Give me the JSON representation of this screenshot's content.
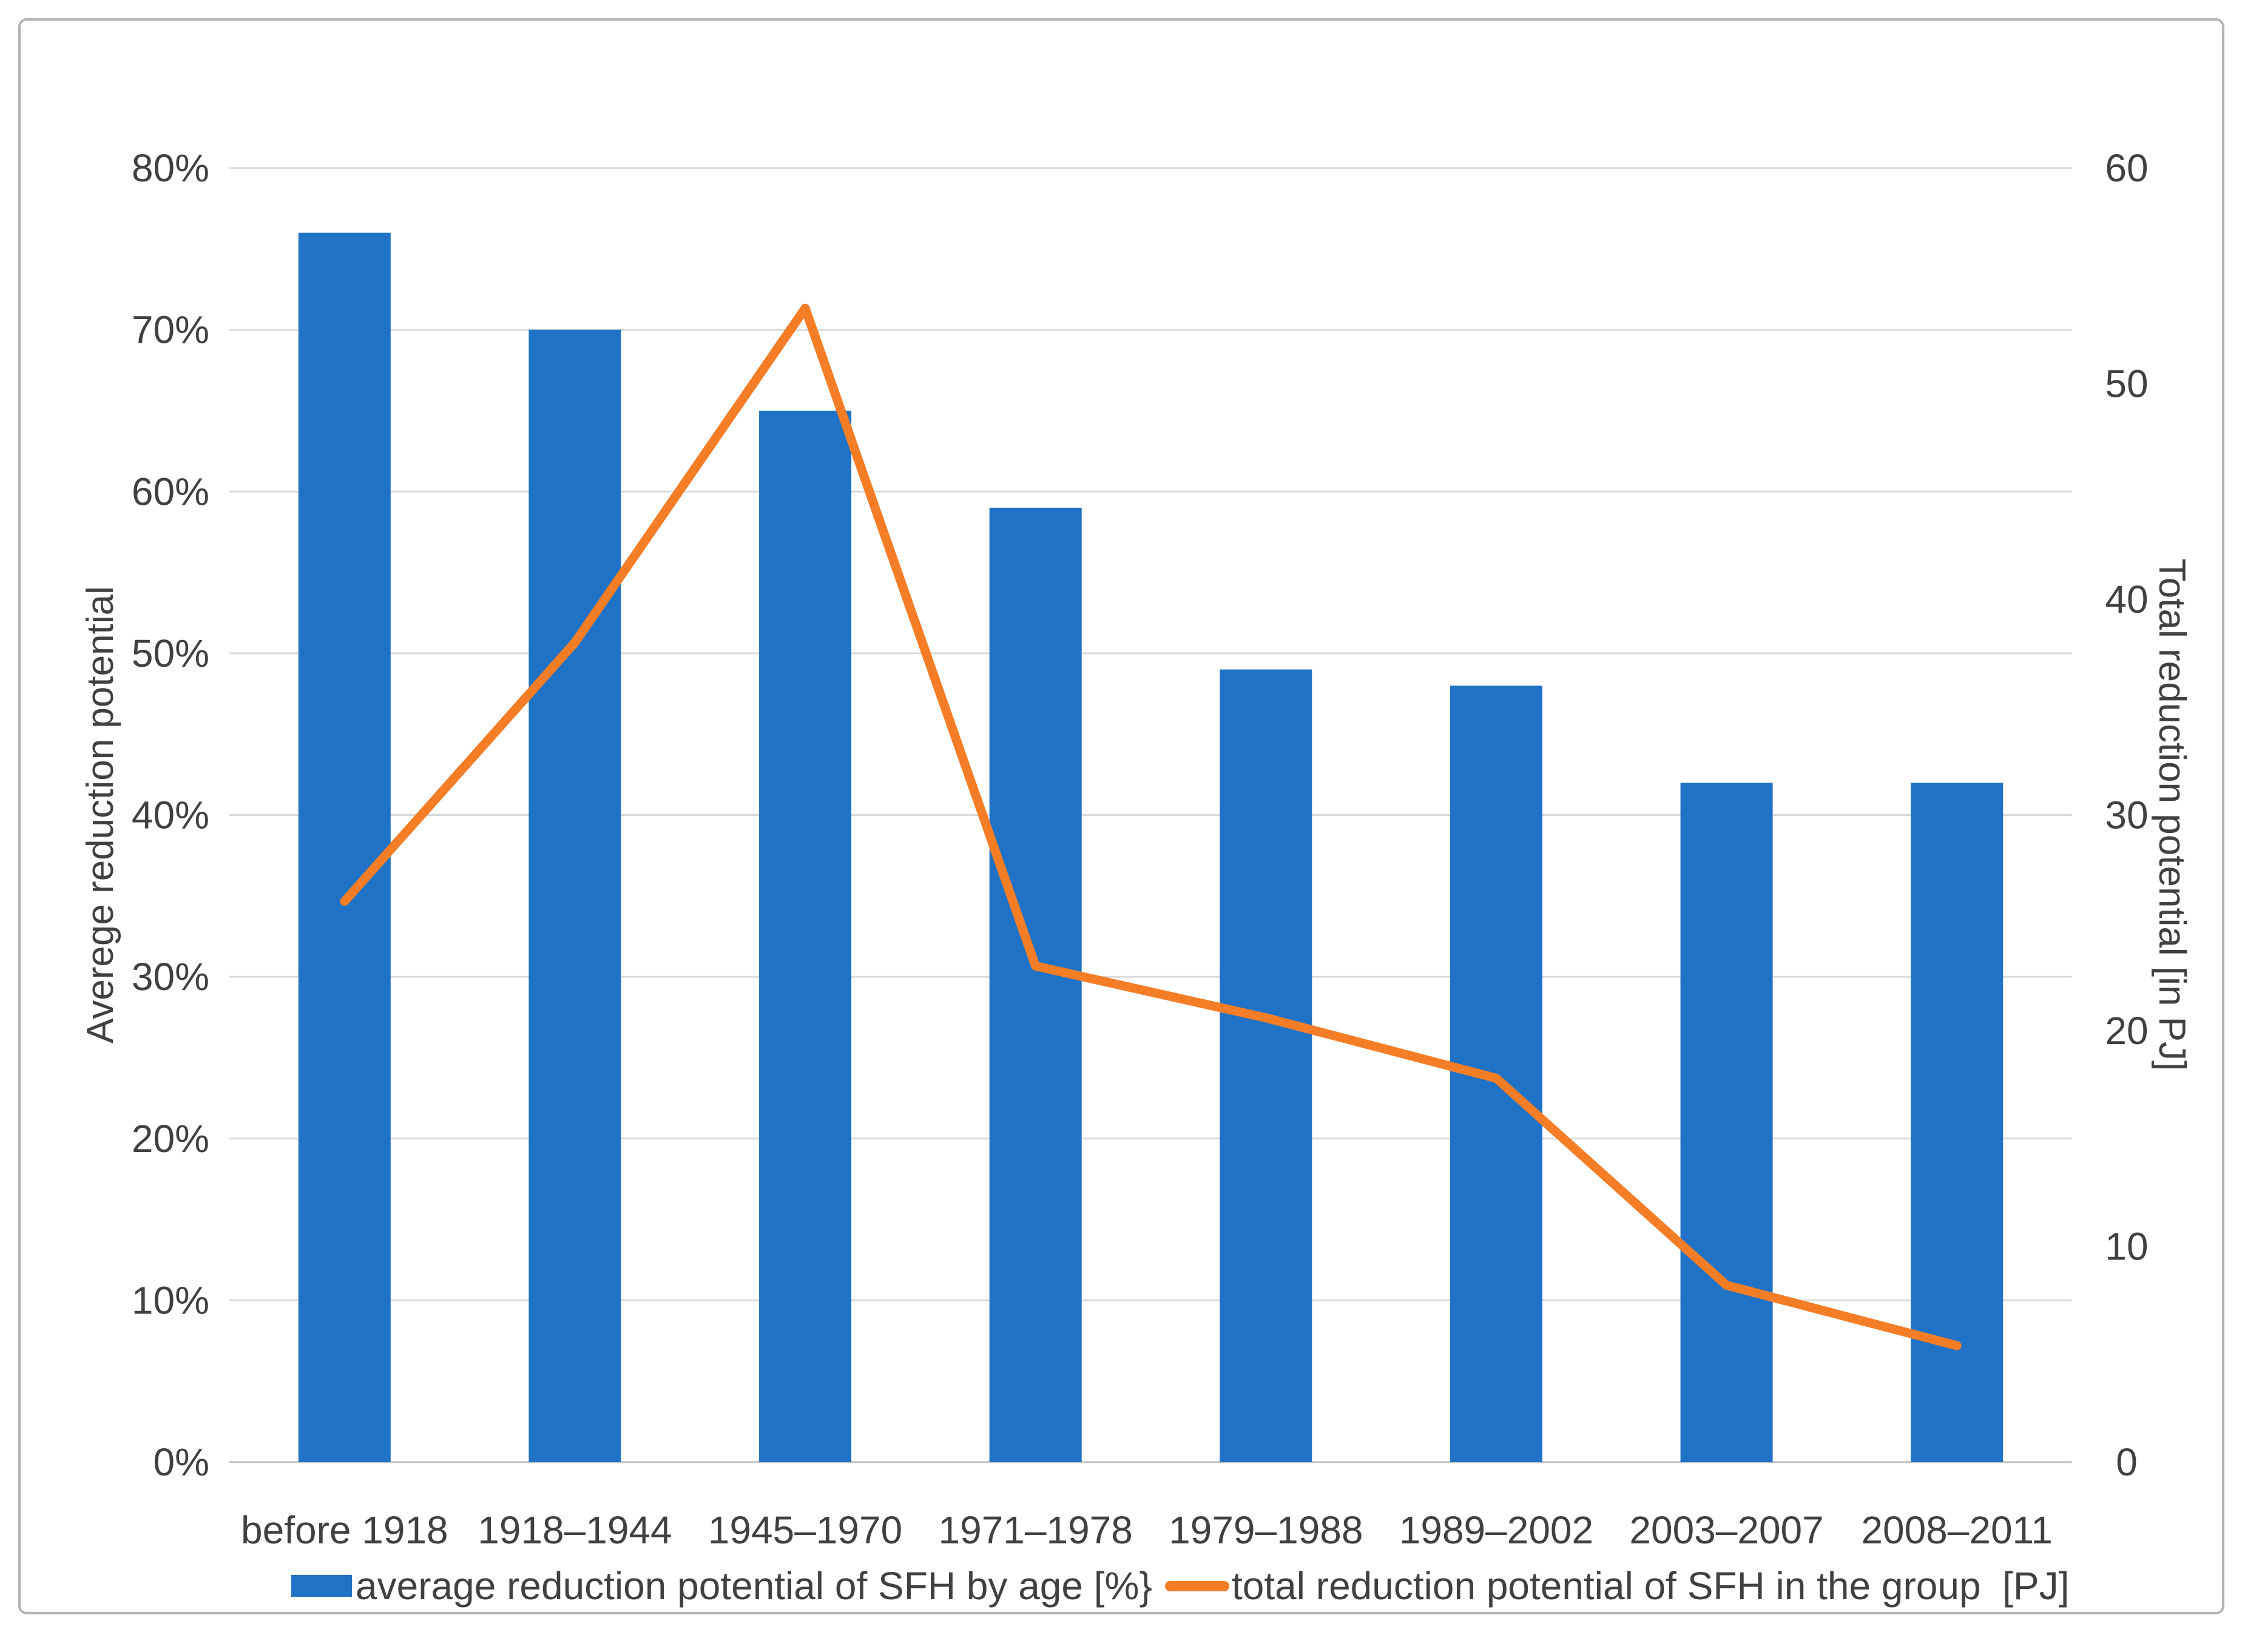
{
  "chart_data": {
    "type": "combo",
    "categories": [
      "before 1918",
      "1918–1944",
      "1945–1970",
      "1971–1978",
      "1979–1988",
      "1989–2002",
      "2003–2007",
      "2008–2011"
    ],
    "series": [
      {
        "name": "average reduction potential of SFH by age [%}",
        "type": "bar",
        "axis": "left",
        "unit": "%",
        "values": [
          76,
          70,
          65,
          59,
          49,
          48,
          42,
          42
        ]
      },
      {
        "name": "total reduction potential of SFH in the group  [PJ]",
        "type": "line",
        "axis": "right",
        "unit": "PJ",
        "values": [
          26,
          38,
          53.5,
          23,
          20.6,
          17.8,
          8.2,
          5.4
        ]
      }
    ],
    "left_axis": {
      "title": "Averege reduction potential",
      "min": 0,
      "max": 80,
      "tick_labels": [
        "80%",
        "70%",
        "60%",
        "50%",
        "40%",
        "30%",
        "20%",
        "10%",
        "0%"
      ]
    },
    "right_axis": {
      "title": "Total reduction potential [in PJ]",
      "min": 0,
      "max": 60,
      "tick_labels": [
        "60",
        "50",
        "40",
        "30",
        "20",
        "10",
        "0"
      ]
    },
    "grid": true,
    "legend_position": "bottom"
  },
  "colors": {
    "bar": "#1F72C5",
    "line": "#F47D26",
    "gridline": "#D9D9D9",
    "axis_line": "#BFBFBF",
    "text": "#404040"
  }
}
